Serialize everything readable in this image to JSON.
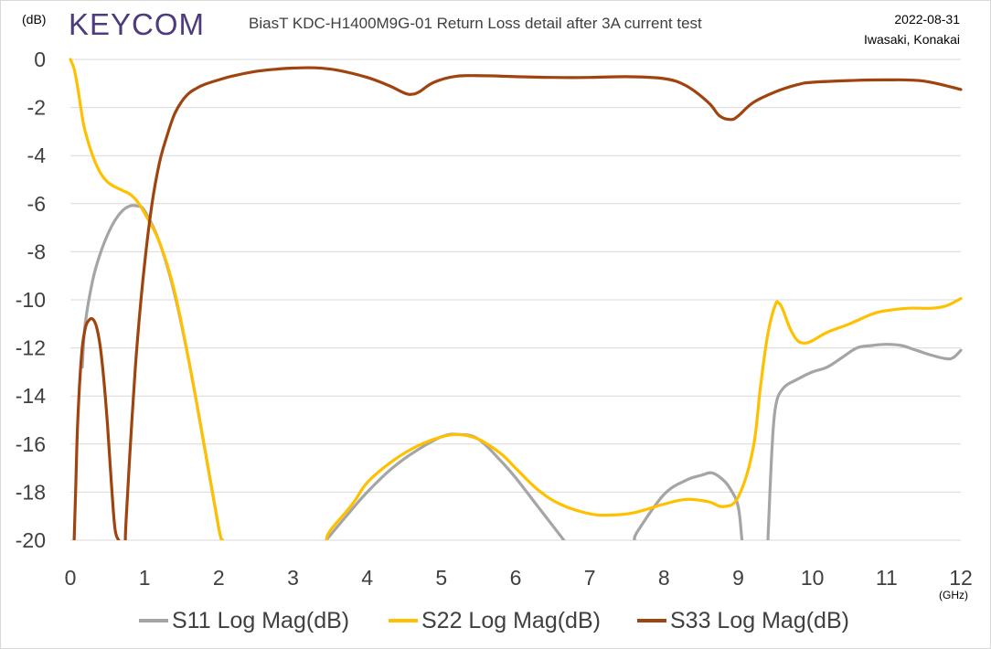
{
  "header": {
    "logo_text": "KEYCOM",
    "title": "BiasT KDC-H1400M9G-01 Return Loss detail after 3A current test",
    "date": "2022-08-31",
    "authors": "Iwasaki, Konakai"
  },
  "colors": {
    "logo": "#4e3a7e",
    "grid": "#d9d9d9",
    "text": "#404040"
  },
  "chart_data": {
    "type": "line",
    "title": "BiasT KDC-H1400M9G-01 Return Loss detail after 3A current test",
    "ylabel": "(dB)",
    "xlabel": "(GHz)",
    "xlim": [
      0,
      12
    ],
    "ylim": [
      -20,
      0
    ],
    "xticks": [
      0,
      1,
      2,
      3,
      4,
      5,
      6,
      7,
      8,
      9,
      10,
      11,
      12
    ],
    "yticks": [
      0,
      -2,
      -4,
      -6,
      -8,
      -10,
      -12,
      -14,
      -16,
      -18,
      -20
    ],
    "grid": true,
    "legend_position": "bottom",
    "series": [
      {
        "name": "S11 Log Mag(dB)",
        "color": "#a5a5a5",
        "x": [
          0.16,
          0.2,
          0.3,
          0.4,
          0.5,
          0.6,
          0.7,
          0.8,
          0.9,
          1.0,
          1.2,
          1.4,
          1.6,
          1.8,
          2.0,
          2.05,
          2.06,
          3.45,
          3.5,
          3.8,
          4.0,
          4.3,
          4.6,
          5.0,
          5.25,
          5.5,
          5.8,
          6.0,
          6.3,
          6.6,
          6.65,
          6.66,
          7.6,
          7.65,
          8.0,
          8.3,
          8.5,
          8.65,
          8.8,
          8.9,
          9.0,
          9.05,
          9.06,
          9.4,
          9.45,
          9.5,
          9.6,
          9.8,
          10.0,
          10.2,
          10.4,
          10.6,
          10.8,
          11.0,
          11.2,
          11.4,
          11.6,
          11.8,
          11.9,
          12.0
        ],
        "values": [
          -12.8,
          -11.0,
          -9.2,
          -8.1,
          -7.3,
          -6.7,
          -6.3,
          -6.1,
          -6.1,
          -6.3,
          -7.6,
          -9.7,
          -12.6,
          -16.0,
          -19.5,
          -20.0,
          null,
          -20.0,
          -19.8,
          -18.7,
          -18.0,
          -17.1,
          -16.4,
          -15.7,
          -15.6,
          -15.8,
          -16.7,
          -17.4,
          -18.6,
          -19.8,
          -20.0,
          null,
          -20.0,
          -19.6,
          -18.1,
          -17.5,
          -17.3,
          -17.2,
          -17.5,
          -17.9,
          -18.6,
          -20.0,
          null,
          -20.0,
          -16.5,
          -14.5,
          -13.7,
          -13.3,
          -13.0,
          -12.8,
          -12.4,
          -12.0,
          -11.9,
          -11.85,
          -11.9,
          -12.1,
          -12.3,
          -12.45,
          -12.4,
          -12.1
        ]
      },
      {
        "name": "S22 Log Mag(dB)",
        "color": "#ffc000",
        "x": [
          0.0,
          0.05,
          0.1,
          0.15,
          0.2,
          0.3,
          0.4,
          0.5,
          0.6,
          0.7,
          0.8,
          0.9,
          1.0,
          1.2,
          1.4,
          1.6,
          1.8,
          2.0,
          2.05,
          2.06,
          3.45,
          3.5,
          3.8,
          4.0,
          4.3,
          4.6,
          4.9,
          5.2,
          5.5,
          5.8,
          6.0,
          6.3,
          6.6,
          7.0,
          7.3,
          7.6,
          8.0,
          8.3,
          8.6,
          8.8,
          9.0,
          9.2,
          9.3,
          9.4,
          9.5,
          9.55,
          9.6,
          9.7,
          9.8,
          9.9,
          10.0,
          10.2,
          10.5,
          10.8,
          11.0,
          11.3,
          11.6,
          11.8,
          12.0
        ],
        "values": [
          0.0,
          -0.4,
          -1.2,
          -2.2,
          -3.0,
          -4.0,
          -4.7,
          -5.1,
          -5.3,
          -5.45,
          -5.6,
          -5.9,
          -6.4,
          -7.6,
          -9.6,
          -12.6,
          -16.0,
          -19.5,
          -20.0,
          null,
          -20.0,
          -19.6,
          -18.5,
          -17.6,
          -16.8,
          -16.2,
          -15.8,
          -15.6,
          -15.8,
          -16.4,
          -17.0,
          -17.9,
          -18.5,
          -18.9,
          -18.95,
          -18.85,
          -18.5,
          -18.3,
          -18.4,
          -18.6,
          -18.2,
          -16.2,
          -13.6,
          -11.4,
          -10.2,
          -10.15,
          -10.4,
          -11.2,
          -11.7,
          -11.8,
          -11.7,
          -11.35,
          -11.0,
          -10.6,
          -10.45,
          -10.35,
          -10.35,
          -10.25,
          -9.95
        ]
      },
      {
        "name": "S33 Log Mag(dB)",
        "color": "#a0440f",
        "x": [
          0.05,
          0.07,
          0.1,
          0.15,
          0.2,
          0.25,
          0.3,
          0.35,
          0.4,
          0.45,
          0.5,
          0.55,
          0.6,
          0.65,
          0.66,
          0.74,
          0.75,
          0.8,
          0.85,
          0.9,
          1.0,
          1.1,
          1.2,
          1.3,
          1.4,
          1.5,
          1.6,
          1.7,
          1.8,
          2.0,
          2.2,
          2.5,
          2.8,
          3.0,
          3.3,
          3.6,
          4.0,
          4.3,
          4.5,
          4.6,
          4.7,
          4.9,
          5.2,
          5.6,
          6.0,
          6.5,
          7.0,
          7.5,
          8.0,
          8.3,
          8.6,
          8.75,
          8.9,
          9.0,
          9.2,
          9.5,
          9.8,
          10.0,
          10.5,
          11.0,
          11.5,
          12.0
        ],
        "values": [
          -20.0,
          -18.0,
          -15.0,
          -12.3,
          -11.2,
          -10.85,
          -10.8,
          -11.1,
          -11.9,
          -13.3,
          -15.2,
          -17.5,
          -19.5,
          -20.0,
          null,
          -20.0,
          -19.2,
          -16.5,
          -14.0,
          -11.8,
          -8.5,
          -6.0,
          -4.3,
          -3.2,
          -2.3,
          -1.75,
          -1.4,
          -1.2,
          -1.05,
          -0.85,
          -0.68,
          -0.5,
          -0.4,
          -0.36,
          -0.35,
          -0.45,
          -0.75,
          -1.1,
          -1.4,
          -1.45,
          -1.35,
          -0.95,
          -0.7,
          -0.68,
          -0.72,
          -0.75,
          -0.75,
          -0.72,
          -0.8,
          -1.1,
          -1.8,
          -2.35,
          -2.5,
          -2.35,
          -1.8,
          -1.35,
          -1.05,
          -0.95,
          -0.88,
          -0.85,
          -0.9,
          -1.25
        ]
      }
    ]
  }
}
